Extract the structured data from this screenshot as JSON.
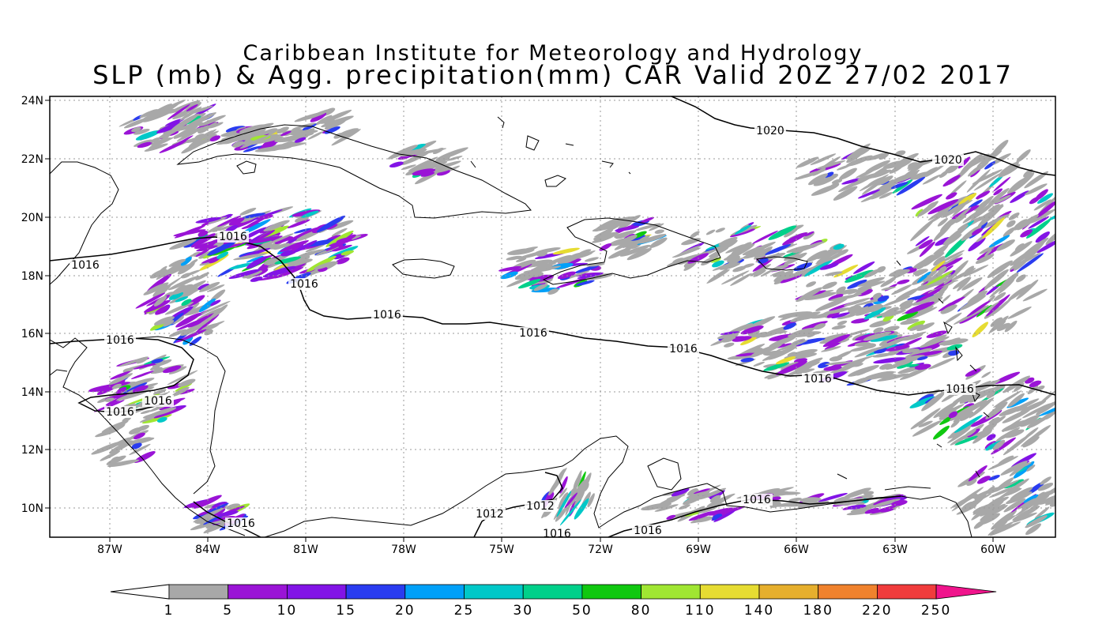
{
  "map": {
    "title_line1": "Caribbean Institute for Meteorology and Hydrology",
    "title_line2": "SLP (mb) & Agg. precipitation(mm) CAR Valid 20Z 27/02 2017",
    "lat_ticks": [
      "24N",
      "22N",
      "20N",
      "18N",
      "16N",
      "14N",
      "12N",
      "10N"
    ],
    "lon_ticks": [
      "87W",
      "84W",
      "81W",
      "78W",
      "75W",
      "72W",
      "69W",
      "66W",
      "63W",
      "60W"
    ],
    "isobar_labels": [
      {
        "text": "1020"
      },
      {
        "text": "1020"
      },
      {
        "text": "1016"
      },
      {
        "text": "1016"
      },
      {
        "text": "1016"
      },
      {
        "text": "1016"
      },
      {
        "text": "1016"
      },
      {
        "text": "1016"
      },
      {
        "text": "1016"
      },
      {
        "text": "1016"
      },
      {
        "text": "1016"
      },
      {
        "text": "1016"
      },
      {
        "text": "1016"
      },
      {
        "text": "1016"
      },
      {
        "text": "1016"
      },
      {
        "text": "1016"
      },
      {
        "text": "1016"
      },
      {
        "text": "1012"
      },
      {
        "text": "1012"
      }
    ]
  },
  "colorbar": {
    "labels": [
      "1",
      "5",
      "10",
      "15",
      "20",
      "25",
      "30",
      "50",
      "80",
      "110",
      "140",
      "180",
      "220",
      "250"
    ],
    "colors": [
      "#a8a8a8",
      "#9a14d6",
      "#8214e6",
      "#2a3cf0",
      "#00a0f8",
      "#00c8c8",
      "#00d08a",
      "#10c810",
      "#a0e632",
      "#e6dc32",
      "#e6af2d",
      "#f0822d",
      "#f03c3c",
      "#f0148c"
    ]
  }
}
